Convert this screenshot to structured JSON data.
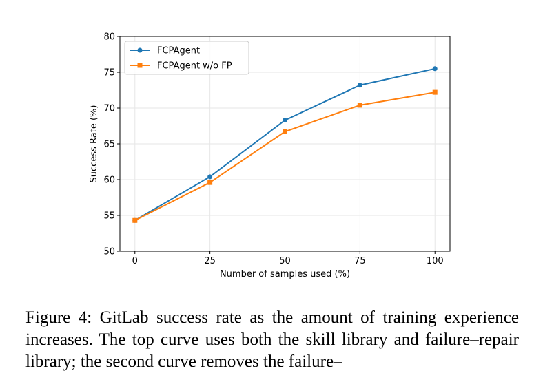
{
  "chart_data": {
    "type": "line",
    "xlabel": "Number of samples used (%)",
    "ylabel": "Success Rate (%)",
    "x": [
      0,
      25,
      50,
      75,
      100
    ],
    "xticks": [
      "0",
      "25",
      "50",
      "75",
      "100"
    ],
    "yticks": [
      "50",
      "55",
      "60",
      "65",
      "70",
      "75",
      "80"
    ],
    "xlim": [
      -5,
      105
    ],
    "ylim": [
      50,
      80
    ],
    "grid": true,
    "legend_position": "top-left",
    "series": [
      {
        "name": "FCPAgent",
        "values": [
          54.3,
          60.4,
          68.3,
          73.2,
          75.5
        ],
        "color": "#1f77b4",
        "marker": "circle"
      },
      {
        "name": "FCPAgent w/o FP",
        "values": [
          54.3,
          59.6,
          66.7,
          70.4,
          72.2
        ],
        "color": "#ff7f0e",
        "marker": "square"
      }
    ]
  },
  "caption": "Figure 4: GitLab success rate as the amount of training experience increases. The top curve uses both the skill library and failure–repair library; the second curve removes the failure–"
}
